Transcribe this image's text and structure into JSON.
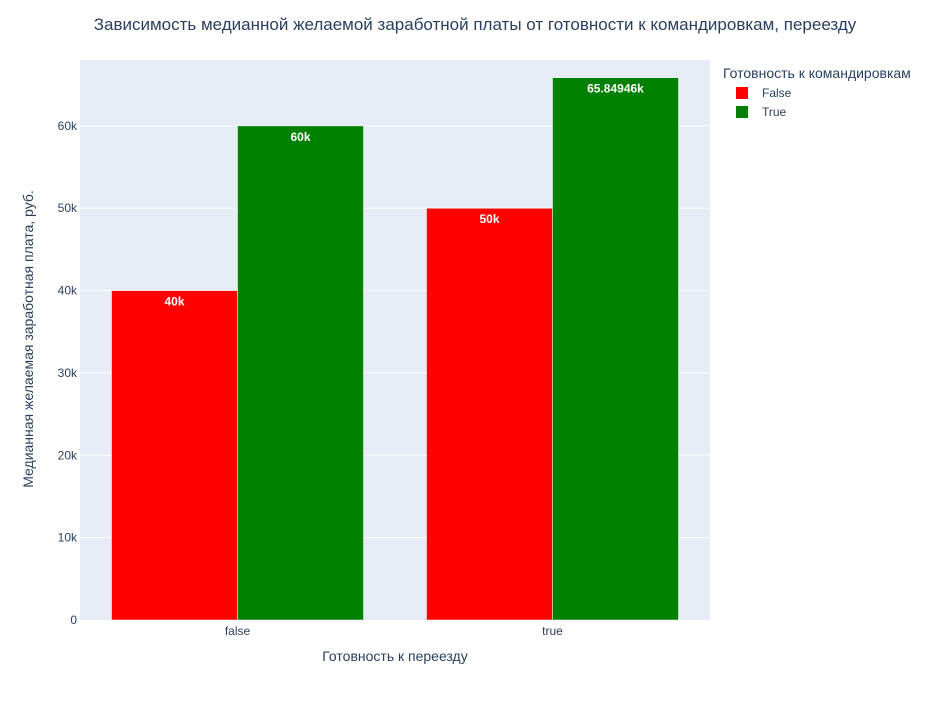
{
  "chart_data": {
    "type": "bar",
    "title": "Зависимость медианной желаемой заработной платы от готовности к командировкам, переезду",
    "xlabel": "Готовность к переезду",
    "ylabel": "Медианная желаемая заработная плата, руб.",
    "categories": [
      "false",
      "true"
    ],
    "ylim": [
      0,
      68000
    ],
    "yticks": [
      0,
      10000,
      20000,
      30000,
      40000,
      50000,
      60000
    ],
    "ytick_labels": [
      "0",
      "10k",
      "20k",
      "30k",
      "40k",
      "50k",
      "60k"
    ],
    "grid": true,
    "legend": {
      "title": "Готовность к командировкам",
      "placement": "top-right"
    },
    "series": [
      {
        "name": "False",
        "color": "#ff0000",
        "values": [
          40000,
          50000
        ],
        "labels": [
          "40k",
          "50k"
        ]
      },
      {
        "name": "True",
        "color": "#008000",
        "values": [
          60000,
          65849.46
        ],
        "labels": [
          "60k",
          "65.84946k"
        ]
      }
    ]
  },
  "colors": {
    "plot_background": "#e5ecf6",
    "grid": "#ffffff",
    "text": "#2a3f5f"
  }
}
